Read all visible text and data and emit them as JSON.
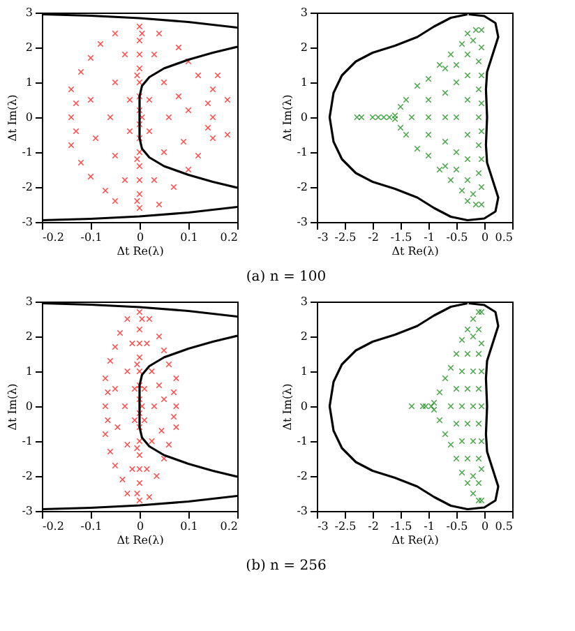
{
  "chart_data": [
    {
      "type": "scatter",
      "xlabel": "Δt Re(λ)",
      "ylabel": "Δt Im(λ)",
      "xlim": [
        -0.2,
        0.2
      ],
      "ylim": [
        -3,
        3
      ],
      "xticks": [
        -0.2,
        -0.1,
        0,
        0.1,
        0.2
      ],
      "yticks": [
        -3,
        -2,
        -1,
        0,
        1,
        2,
        3
      ],
      "grid": false,
      "marker": "cross",
      "annotations": [
        "(a) n = 100"
      ],
      "series": [
        {
          "color": "#ff0000",
          "x": [
            0,
            0,
            0,
            0,
            0,
            0,
            0,
            0,
            0,
            0,
            0,
            0,
            0,
            0,
            0.005,
            -0.005,
            0.005,
            -0.005,
            -0.005,
            -0.14,
            -0.14,
            -0.14,
            -0.13,
            -0.13,
            -0.12,
            -0.12,
            -0.1,
            -0.1,
            -0.08,
            -0.07,
            -0.05,
            -0.05,
            -0.1,
            -0.09,
            -0.06,
            -0.05,
            -0.05,
            -0.03,
            -0.03,
            -0.02,
            -0.02,
            0.15,
            0.15,
            0.15,
            0.14,
            0.14,
            0.12,
            0.12,
            0.1,
            0.1,
            0.08,
            0.07,
            0.04,
            0.04,
            0.1,
            0.09,
            0.06,
            0.05,
            0.05,
            0.03,
            0.03,
            0.02,
            0.02,
            0.08,
            0.18,
            0.18,
            0.16
          ],
          "values": [
            -2.6,
            -2.2,
            -1.8,
            -1.4,
            -1,
            -0.6,
            -0.2,
            0.2,
            0.6,
            1,
            1.4,
            1.8,
            2.2,
            2.6,
            2.4,
            -2.4,
            0,
            1.2,
            -1.2,
            0.8,
            -0.8,
            0,
            0.4,
            -0.4,
            1.3,
            -1.3,
            1.7,
            -1.7,
            2.1,
            -2.1,
            2.4,
            -2.4,
            0.5,
            -0.6,
            0,
            1,
            -1.1,
            1.8,
            -1.8,
            0.5,
            -0.4,
            0.8,
            -0.6,
            0,
            0.4,
            -0.3,
            1.2,
            -1.1,
            1.6,
            -1.5,
            2,
            -2,
            2.4,
            -2.5,
            0.2,
            -0.7,
            0,
            1,
            -1,
            1.8,
            -1.8,
            0.5,
            -0.4,
            0.6,
            0.5,
            -0.5,
            1.2
          ]
        },
        {
          "type": "line",
          "marker": "none",
          "color": "#000000",
          "x": [
            -0.2,
            -0.1,
            0,
            0.1,
            0.2
          ],
          "values": [
            2.95,
            2.91,
            2.84,
            2.73,
            2.57
          ]
        },
        {
          "type": "line",
          "marker": "none",
          "color": "#000000",
          "x": [
            0.2,
            0.15,
            0.1,
            0.05,
            0.02,
            0.005,
            0,
            0,
            0,
            0.005,
            0.02,
            0.05,
            0.1,
            0.15,
            0.2
          ],
          "values": [
            2.02,
            1.85,
            1.65,
            1.4,
            1.15,
            0.9,
            0.6,
            0,
            -0.6,
            -0.9,
            -1.15,
            -1.4,
            -1.65,
            -1.85,
            -2.02
          ]
        },
        {
          "type": "line",
          "marker": "none",
          "color": "#000000",
          "x": [
            -0.2,
            -0.1,
            0,
            0.1,
            0.2
          ],
          "values": [
            -2.95,
            -2.91,
            -2.84,
            -2.73,
            -2.57
          ]
        }
      ]
    },
    {
      "type": "scatter",
      "xlabel": "Δt Re(λ)",
      "ylabel": "Δt Im(λ)",
      "xlim": [
        -3,
        0.5
      ],
      "ylim": [
        -3,
        3
      ],
      "xticks": [
        -3,
        -2.5,
        -2,
        -1.5,
        -1,
        -0.5,
        0,
        0.5
      ],
      "yticks": [
        -3,
        -2,
        -1,
        0,
        1,
        2,
        3
      ],
      "grid": false,
      "marker": "cross",
      "series": [
        {
          "color": "#008000",
          "x": [
            -2.28,
            -2.2,
            -2.0,
            -1.9,
            -1.8,
            -1.7,
            -1.6,
            -1.6,
            -1.5,
            -1.5,
            -1.4,
            -1.4,
            -1.2,
            -1.2,
            -1.0,
            -1.0,
            -0.8,
            -0.8,
            -0.7,
            -0.7,
            -0.6,
            -0.6,
            -0.4,
            -0.4,
            -0.3,
            -0.3,
            -0.15,
            -0.15,
            -0.05,
            -0.05,
            -1.3,
            -1.0,
            -1.0,
            -1.0,
            -0.7,
            -0.7,
            -0.7,
            -0.5,
            -0.5,
            -0.5,
            -0.5,
            -0.5,
            -0.3,
            -0.3,
            -0.3,
            -0.3,
            -0.3,
            -0.3,
            -0.1,
            -0.1,
            -0.1,
            -0.1,
            -0.1,
            -0.05,
            -0.05,
            -0.05,
            -0.05,
            -0.05,
            -0.05,
            -0.2,
            -0.2
          ],
          "values": [
            0,
            0,
            0,
            0,
            0,
            0,
            0.05,
            -0.05,
            0.3,
            -0.3,
            0.5,
            -0.5,
            0.9,
            -0.9,
            1.1,
            -1.1,
            1.5,
            -1.5,
            1.4,
            -1.4,
            1.8,
            -1.8,
            2.1,
            -2.1,
            2.4,
            -2.4,
            2.5,
            -2.5,
            2.5,
            -2.5,
            0,
            0,
            0.5,
            -0.5,
            0,
            0.7,
            -0.7,
            0,
            1,
            -1,
            1.5,
            -1.5,
            0.5,
            -0.5,
            1.2,
            -1.2,
            1.8,
            -1.8,
            0,
            0.8,
            -0.8,
            1.6,
            -1.6,
            1.2,
            -1.2,
            2,
            -2,
            0.4,
            -0.4,
            2.2,
            -2.2
          ]
        },
        {
          "type": "line",
          "marker": "none",
          "color": "#000000",
          "x": [
            -0.3,
            -0.6,
            -0.9,
            -1.2,
            -1.6,
            -2.0,
            -2.3,
            -2.55,
            -2.7,
            -2.77,
            -2.7,
            -2.55,
            -2.3,
            -2.0,
            -1.6,
            -1.2,
            -0.9,
            -0.6,
            -0.3,
            0,
            0.2,
            0.25,
            0.15,
            0.05,
            0.03,
            0.05,
            0.03,
            0.05,
            0.15,
            0.25,
            0.2,
            0,
            -0.28
          ],
          "values": [
            2.95,
            2.85,
            2.6,
            2.3,
            2.05,
            1.85,
            1.6,
            1.2,
            0.7,
            0,
            -0.7,
            -1.2,
            -1.6,
            -1.85,
            -2.05,
            -2.3,
            -2.6,
            -2.85,
            -2.95,
            -2.9,
            -2.7,
            -2.3,
            -1.8,
            -1.3,
            -0.8,
            0,
            0.8,
            1.3,
            1.8,
            2.3,
            2.7,
            2.9,
            2.95
          ]
        }
      ]
    },
    {
      "type": "scatter",
      "xlabel": "Δt Re(λ)",
      "ylabel": "Δt Im(λ)",
      "xlim": [
        -0.2,
        0.2
      ],
      "ylim": [
        -3,
        3
      ],
      "xticks": [
        -0.2,
        -0.1,
        0,
        0.1,
        0.2
      ],
      "yticks": [
        -3,
        -2,
        -1,
        0,
        1,
        2,
        3
      ],
      "grid": false,
      "marker": "cross",
      "annotations": [
        "(b) n = 256"
      ],
      "series": [
        {
          "color": "#ff0000",
          "x": [
            0,
            0,
            0,
            0,
            0,
            0,
            0,
            0,
            0,
            0,
            0,
            0,
            0,
            0,
            0.005,
            -0.005,
            0.005,
            -0.005,
            -0.005,
            -0.07,
            -0.07,
            -0.07,
            -0.065,
            -0.065,
            -0.06,
            -0.06,
            -0.05,
            -0.05,
            -0.04,
            -0.035,
            -0.025,
            -0.025,
            -0.05,
            -0.045,
            -0.03,
            -0.025,
            -0.025,
            -0.015,
            -0.015,
            -0.01,
            -0.01,
            0.075,
            0.075,
            0.075,
            0.07,
            0.07,
            0.06,
            0.06,
            0.05,
            0.05,
            0.04,
            0.035,
            0.02,
            0.02,
            0.05,
            0.045,
            0.03,
            0.025,
            0.025,
            0.015,
            0.015,
            0.01,
            0.01,
            0.04
          ],
          "values": [
            -2.7,
            -2.2,
            -1.8,
            -1.4,
            -1,
            -0.6,
            -0.2,
            0.2,
            0.6,
            1,
            1.4,
            1.8,
            2.2,
            2.7,
            2.5,
            -2.5,
            0,
            1.2,
            -1.2,
            0.8,
            -0.8,
            0,
            0.4,
            -0.4,
            1.3,
            -1.3,
            1.7,
            -1.7,
            2.1,
            -2.1,
            2.5,
            -2.5,
            0.5,
            -0.6,
            0,
            1,
            -1.1,
            1.8,
            -1.8,
            0.5,
            -0.4,
            0.8,
            -0.6,
            0,
            0.4,
            -0.3,
            1.2,
            -1.1,
            1.6,
            -1.5,
            2,
            -2,
            2.5,
            -2.6,
            0.2,
            -0.7,
            0,
            1,
            -1,
            1.8,
            -1.8,
            0.5,
            -0.4,
            0.6
          ]
        },
        {
          "type": "line",
          "marker": "none",
          "color": "#000000",
          "x": [
            -0.2,
            -0.1,
            0,
            0.1,
            0.2
          ],
          "values": [
            2.95,
            2.91,
            2.84,
            2.73,
            2.57
          ]
        },
        {
          "type": "line",
          "marker": "none",
          "color": "#000000",
          "x": [
            0.2,
            0.15,
            0.1,
            0.05,
            0.02,
            0.005,
            0,
            0,
            0,
            0.005,
            0.02,
            0.05,
            0.1,
            0.15,
            0.2
          ],
          "values": [
            2.02,
            1.85,
            1.65,
            1.4,
            1.15,
            0.9,
            0.6,
            0,
            -0.6,
            -0.9,
            -1.15,
            -1.4,
            -1.65,
            -1.85,
            -2.02
          ]
        },
        {
          "type": "line",
          "marker": "none",
          "color": "#000000",
          "x": [
            -0.2,
            -0.1,
            0,
            0.1,
            0.2
          ],
          "values": [
            -2.95,
            -2.91,
            -2.84,
            -2.73,
            -2.57
          ]
        }
      ]
    },
    {
      "type": "scatter",
      "xlabel": "Δt Re(λ)",
      "ylabel": "Δt Im(λ)",
      "xlim": [
        -3,
        0.5
      ],
      "ylim": [
        -3,
        3
      ],
      "xticks": [
        -3,
        -2.5,
        -2,
        -1.5,
        -1,
        -0.5,
        0,
        0.5
      ],
      "yticks": [
        -3,
        -2,
        -1,
        0,
        1,
        2,
        3
      ],
      "grid": false,
      "marker": "cross",
      "series": [
        {
          "color": "#008000",
          "x": [
            -1.3,
            -1.1,
            -1.05,
            -0.95,
            -0.9,
            -0.9,
            -0.8,
            -0.8,
            -0.7,
            -0.7,
            -0.6,
            -0.6,
            -0.5,
            -0.5,
            -0.4,
            -0.4,
            -0.3,
            -0.3,
            -0.2,
            -0.2,
            -0.1,
            -0.05,
            -0.1,
            -0.05,
            -0.6,
            -0.5,
            -0.5,
            -0.4,
            -0.4,
            -0.4,
            -0.3,
            -0.3,
            -0.3,
            -0.3,
            -0.2,
            -0.2,
            -0.2,
            -0.2,
            -0.2,
            -0.1,
            -0.1,
            -0.1,
            -0.1,
            -0.1,
            -0.1,
            -0.05,
            -0.05,
            -0.05,
            -0.05,
            -0.05
          ],
          "values": [
            0,
            0,
            0,
            0,
            0.1,
            -0.1,
            0.4,
            -0.4,
            0.8,
            -0.8,
            1.1,
            -1.1,
            1.5,
            -1.5,
            1.9,
            -1.9,
            2.2,
            -2.2,
            2.5,
            -2.5,
            2.7,
            2.7,
            -2.7,
            -2.7,
            0,
            0.5,
            -0.5,
            0,
            1,
            -1,
            0.5,
            -0.5,
            1.5,
            -1.5,
            0,
            1,
            -1,
            2,
            -2,
            0.5,
            -0.5,
            1.5,
            -1.5,
            2.2,
            -2.2,
            0,
            1,
            -1,
            1.8,
            -1.8
          ]
        },
        {
          "type": "line",
          "marker": "none",
          "color": "#000000",
          "x": [
            -0.3,
            -0.6,
            -0.9,
            -1.2,
            -1.6,
            -2.0,
            -2.3,
            -2.55,
            -2.7,
            -2.77,
            -2.7,
            -2.55,
            -2.3,
            -2.0,
            -1.6,
            -1.2,
            -0.9,
            -0.6,
            -0.3,
            0,
            0.2,
            0.25,
            0.15,
            0.05,
            0.03,
            0.05,
            0.03,
            0.05,
            0.15,
            0.25,
            0.2,
            0,
            -0.28
          ],
          "values": [
            2.95,
            2.85,
            2.6,
            2.3,
            2.05,
            1.85,
            1.6,
            1.2,
            0.7,
            0,
            -0.7,
            -1.2,
            -1.6,
            -1.85,
            -2.05,
            -2.3,
            -2.6,
            -2.85,
            -2.95,
            -2.9,
            -2.7,
            -2.3,
            -1.8,
            -1.3,
            -0.8,
            0,
            0.8,
            1.3,
            1.8,
            2.3,
            2.7,
            2.9,
            2.95
          ]
        }
      ]
    }
  ]
}
